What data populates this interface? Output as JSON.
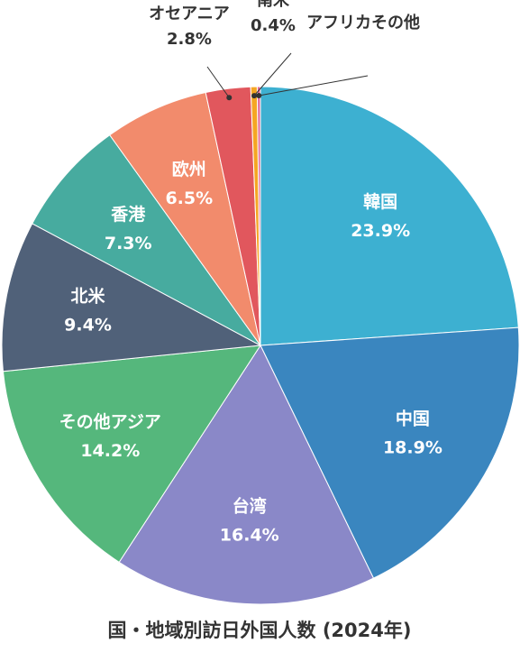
{
  "chart_data": {
    "type": "pie",
    "title": "国・地域別訪日外国人数 (2024年)",
    "categories": [
      "韓国",
      "中国",
      "台湾",
      "その他アジア",
      "北米",
      "香港",
      "欧州",
      "オセアニア",
      "南米",
      "アフリカその他"
    ],
    "values": [
      23.9,
      18.9,
      16.4,
      14.2,
      9.4,
      7.3,
      6.5,
      2.8,
      0.4,
      0.2
    ],
    "value_labels": [
      "23.9%",
      "18.9%",
      "16.4%",
      "14.2%",
      "9.4%",
      "7.3%",
      "6.5%",
      "2.8%",
      "0.4%",
      null
    ],
    "colors": [
      "#3db0d1",
      "#3a86bf",
      "#8a88c8",
      "#55b77c",
      "#506179",
      "#47ab9f",
      "#f28b6c",
      "#e1575d",
      "#f5a623",
      "#e06a9a"
    ]
  }
}
